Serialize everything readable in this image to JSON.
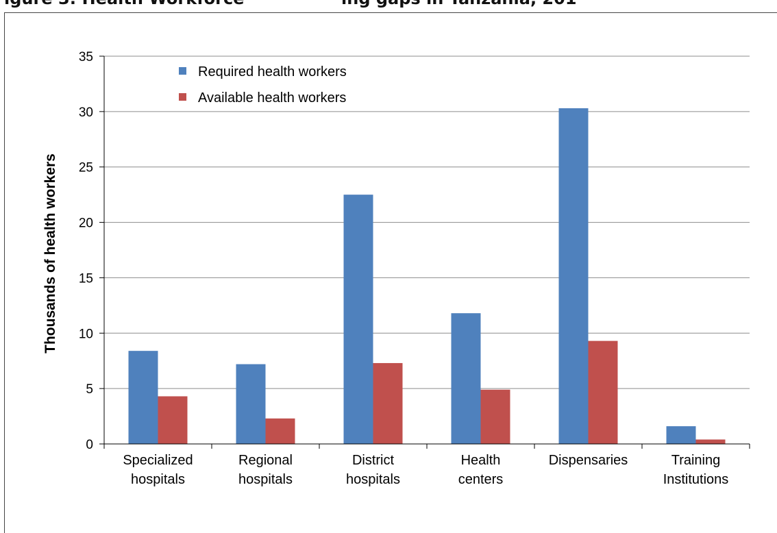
{
  "page": {
    "title_left": "igure 3: Health Workforce",
    "title_right": "ing gaps in Tanzania, 201"
  },
  "chart_data": {
    "type": "bar",
    "ylabel": "Thousands of health workers",
    "xlabel": "",
    "ylim": [
      0,
      35
    ],
    "yticks": [
      0,
      5,
      10,
      15,
      20,
      25,
      30,
      35
    ],
    "grid": true,
    "legend_position": "top-left",
    "categories": [
      [
        "Specialized",
        "hospitals"
      ],
      [
        "Regional",
        "hospitals"
      ],
      [
        "District",
        "hospitals"
      ],
      [
        "Health",
        "centers"
      ],
      [
        "Dispensaries"
      ],
      [
        "Training",
        "Institutions"
      ]
    ],
    "series": [
      {
        "name": "Required health workers",
        "color": "#4f81bd",
        "values": [
          8.4,
          7.2,
          22.5,
          11.8,
          30.3,
          1.6
        ]
      },
      {
        "name": "Available health workers",
        "color": "#c0504d",
        "values": [
          4.3,
          2.3,
          7.3,
          4.9,
          9.3,
          0.4
        ]
      }
    ]
  }
}
